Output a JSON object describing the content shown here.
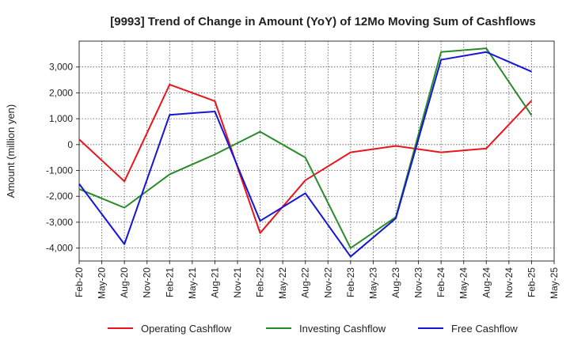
{
  "chart_data": {
    "type": "line",
    "title": "[9993]  Trend of Change in Amount (YoY) of 12Mo Moving Sum of Cashflows",
    "xlabel": "",
    "ylabel": "Amount (million yen)",
    "ylim": [
      -4500,
      4000
    ],
    "yticks": [
      -4000,
      -3000,
      -2000,
      -1000,
      0,
      1000,
      2000,
      3000
    ],
    "ytick_labels": [
      "-4,000",
      "-3,000",
      "-2,000",
      "-1,000",
      "0",
      "1,000",
      "2,000",
      "3,000"
    ],
    "x_tick_labels": [
      "Feb-20",
      "May-20",
      "Aug-20",
      "Nov-20",
      "Feb-21",
      "May-21",
      "Aug-21",
      "Nov-21",
      "Feb-22",
      "May-22",
      "Aug-22",
      "Nov-22",
      "Feb-23",
      "May-23",
      "Aug-23",
      "Nov-23",
      "Feb-24",
      "May-24",
      "Aug-24",
      "Nov-24",
      "Feb-25",
      "May-25"
    ],
    "grid": true,
    "legend_position": "bottom",
    "series": [
      {
        "name": "Operating Cashflow",
        "color": "#e8161b",
        "points": [
          [
            0,
            200
          ],
          [
            2,
            -1420
          ],
          [
            4,
            2320
          ],
          [
            6,
            1680
          ],
          [
            8,
            -3420
          ],
          [
            10,
            -1380
          ],
          [
            12,
            -300
          ],
          [
            14,
            -50
          ],
          [
            16,
            -300
          ],
          [
            18,
            -150
          ],
          [
            20,
            1700
          ]
        ]
      },
      {
        "name": "Investing Cashflow",
        "color": "#2a8a2a",
        "points": [
          [
            0,
            -1720
          ],
          [
            2,
            -2440
          ],
          [
            4,
            -1150
          ],
          [
            6,
            -380
          ],
          [
            8,
            500
          ],
          [
            10,
            -500
          ],
          [
            12,
            -4000
          ],
          [
            14,
            -2800
          ],
          [
            16,
            3580
          ],
          [
            18,
            3720
          ],
          [
            20,
            1130
          ]
        ]
      },
      {
        "name": "Free Cashflow",
        "color": "#1515d8",
        "points": [
          [
            0,
            -1520
          ],
          [
            2,
            -3850
          ],
          [
            4,
            1150
          ],
          [
            6,
            1280
          ],
          [
            8,
            -2950
          ],
          [
            10,
            -1880
          ],
          [
            12,
            -4330
          ],
          [
            14,
            -2850
          ],
          [
            16,
            3280
          ],
          [
            18,
            3580
          ],
          [
            20,
            2820
          ]
        ]
      }
    ]
  }
}
